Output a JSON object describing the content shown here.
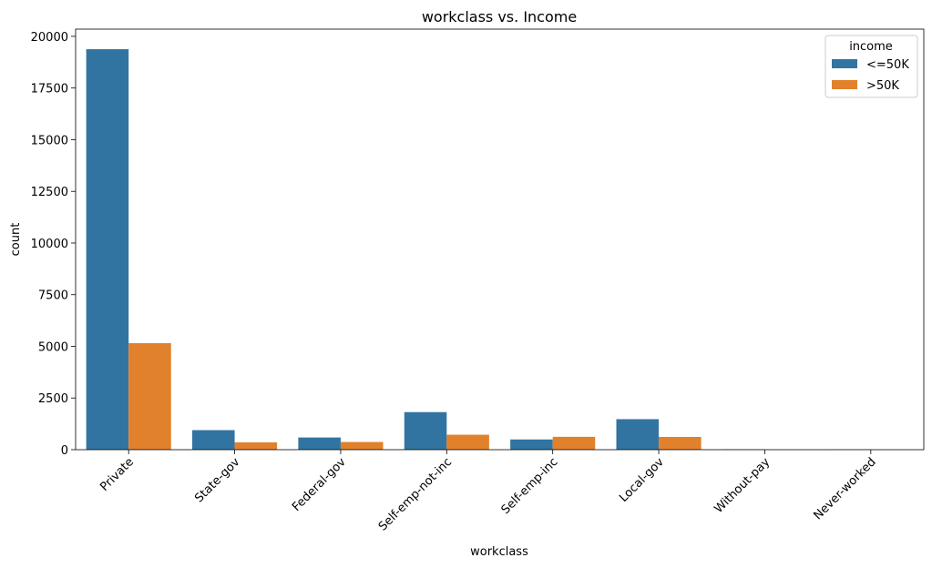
{
  "chart_data": {
    "type": "bar",
    "title": "workclass vs. Income",
    "xlabel": "workclass",
    "ylabel": "count",
    "categories": [
      "Private",
      "State-gov",
      "Federal-gov",
      "Self-emp-not-inc",
      "Self-emp-inc",
      "Local-gov",
      "Without-pay",
      "Never-worked"
    ],
    "series": [
      {
        "name": "<=50K",
        "color": "#3274a1",
        "values": [
          19378,
          945,
          589,
          1817,
          494,
          1476,
          14,
          7
        ]
      },
      {
        "name": ">50K",
        "color": "#e1812c",
        "values": [
          5154,
          353,
          371,
          724,
          622,
          617,
          0,
          0
        ]
      }
    ],
    "ylim": [
      0,
      20350
    ],
    "yticks": [
      0,
      2500,
      5000,
      7500,
      10000,
      12500,
      15000,
      17500,
      20000
    ],
    "legend": {
      "title": "income",
      "position": "top-right"
    },
    "grid": false
  }
}
